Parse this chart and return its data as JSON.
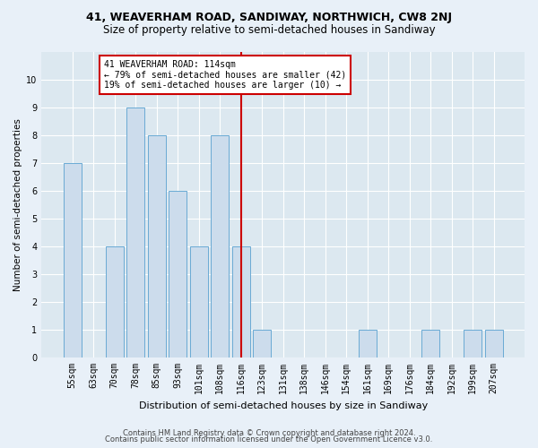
{
  "title": "41, WEAVERHAM ROAD, SANDIWAY, NORTHWICH, CW8 2NJ",
  "subtitle": "Size of property relative to semi-detached houses in Sandiway",
  "xlabel": "Distribution of semi-detached houses by size in Sandiway",
  "ylabel": "Number of semi-detached properties",
  "categories": [
    "55sqm",
    "63sqm",
    "70sqm",
    "78sqm",
    "85sqm",
    "93sqm",
    "101sqm",
    "108sqm",
    "116sqm",
    "123sqm",
    "131sqm",
    "138sqm",
    "146sqm",
    "154sqm",
    "161sqm",
    "169sqm",
    "176sqm",
    "184sqm",
    "192sqm",
    "199sqm",
    "207sqm"
  ],
  "values": [
    7,
    0,
    4,
    9,
    8,
    6,
    4,
    8,
    4,
    1,
    0,
    0,
    0,
    0,
    1,
    0,
    0,
    1,
    0,
    1,
    1
  ],
  "bar_color": "#ccdcec",
  "bar_edgecolor": "#6aaad4",
  "subject_line_color": "#cc0000",
  "subject_line_label": "41 WEAVERHAM ROAD: 114sqm",
  "annotation_smaller": "← 79% of semi-detached houses are smaller (42)",
  "annotation_larger": "19% of semi-detached houses are larger (10) →",
  "annotation_box_edgecolor": "#cc0000",
  "ylim": [
    0,
    11
  ],
  "yticks": [
    0,
    1,
    2,
    3,
    4,
    5,
    6,
    7,
    8,
    9,
    10,
    11
  ],
  "footer1": "Contains HM Land Registry data © Crown copyright and database right 2024.",
  "footer2": "Contains public sector information licensed under the Open Government Licence v3.0.",
  "plot_bg_color": "#dce8f0",
  "fig_bg_color": "#e8f0f8",
  "grid_color": "#ffffff",
  "title_fontsize": 9,
  "subtitle_fontsize": 8.5,
  "xlabel_fontsize": 8,
  "ylabel_fontsize": 7.5,
  "tick_fontsize": 7,
  "annot_fontsize": 7,
  "footer_fontsize": 6
}
